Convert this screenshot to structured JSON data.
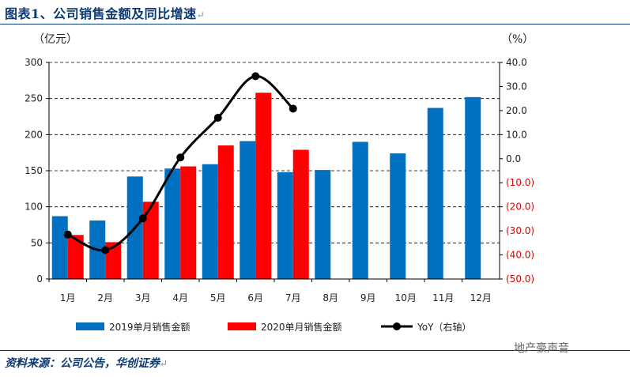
{
  "title": "图表1、公司销售金额及同比增速",
  "return_glyph": "↵",
  "source": "资料来源：公司公告，华创证券",
  "watermark": "地产豪声音",
  "colors": {
    "bar2019": "#0070c0",
    "bar2020": "#ff0000",
    "yoy": "#000000",
    "negative": "#e00000",
    "title": "#0b3a73"
  },
  "chart_data": {
    "type": "bar",
    "categories": [
      "1月",
      "2月",
      "3月",
      "4月",
      "5月",
      "6月",
      "7月",
      "8月",
      "9月",
      "10月",
      "11月",
      "12月"
    ],
    "series": [
      {
        "name": "2019单月销售金额",
        "axis": "left",
        "type": "bar",
        "values": [
          87,
          81,
          142,
          153,
          159,
          191,
          148,
          151,
          190,
          174,
          237,
          252
        ]
      },
      {
        "name": "2020单月销售金额",
        "axis": "left",
        "type": "bar",
        "values": [
          61,
          51,
          107,
          156,
          185,
          258,
          179,
          null,
          null,
          null,
          null,
          null
        ]
      },
      {
        "name": "YoY（右轴）",
        "axis": "right",
        "type": "line",
        "values": [
          -31.5,
          -38.0,
          -24.8,
          0.5,
          17.0,
          34.3,
          20.8,
          null,
          null,
          null,
          null,
          null
        ]
      }
    ],
    "left_axis": {
      "unit": "（亿元）",
      "range": [
        0,
        300
      ],
      "ticks": [
        "0",
        "50",
        "100",
        "150",
        "200",
        "250",
        "300"
      ]
    },
    "right_axis": {
      "unit": "（%）",
      "range": [
        -50,
        40
      ],
      "ticks": [
        "(50.0)",
        "(40.0)",
        "(30.0)",
        "(20.0)",
        "(10.0)",
        "0.0",
        "10.0",
        "20.0",
        "30.0",
        "40.0"
      ]
    },
    "grid": "horizontal-dashed",
    "legend_position": "bottom"
  }
}
